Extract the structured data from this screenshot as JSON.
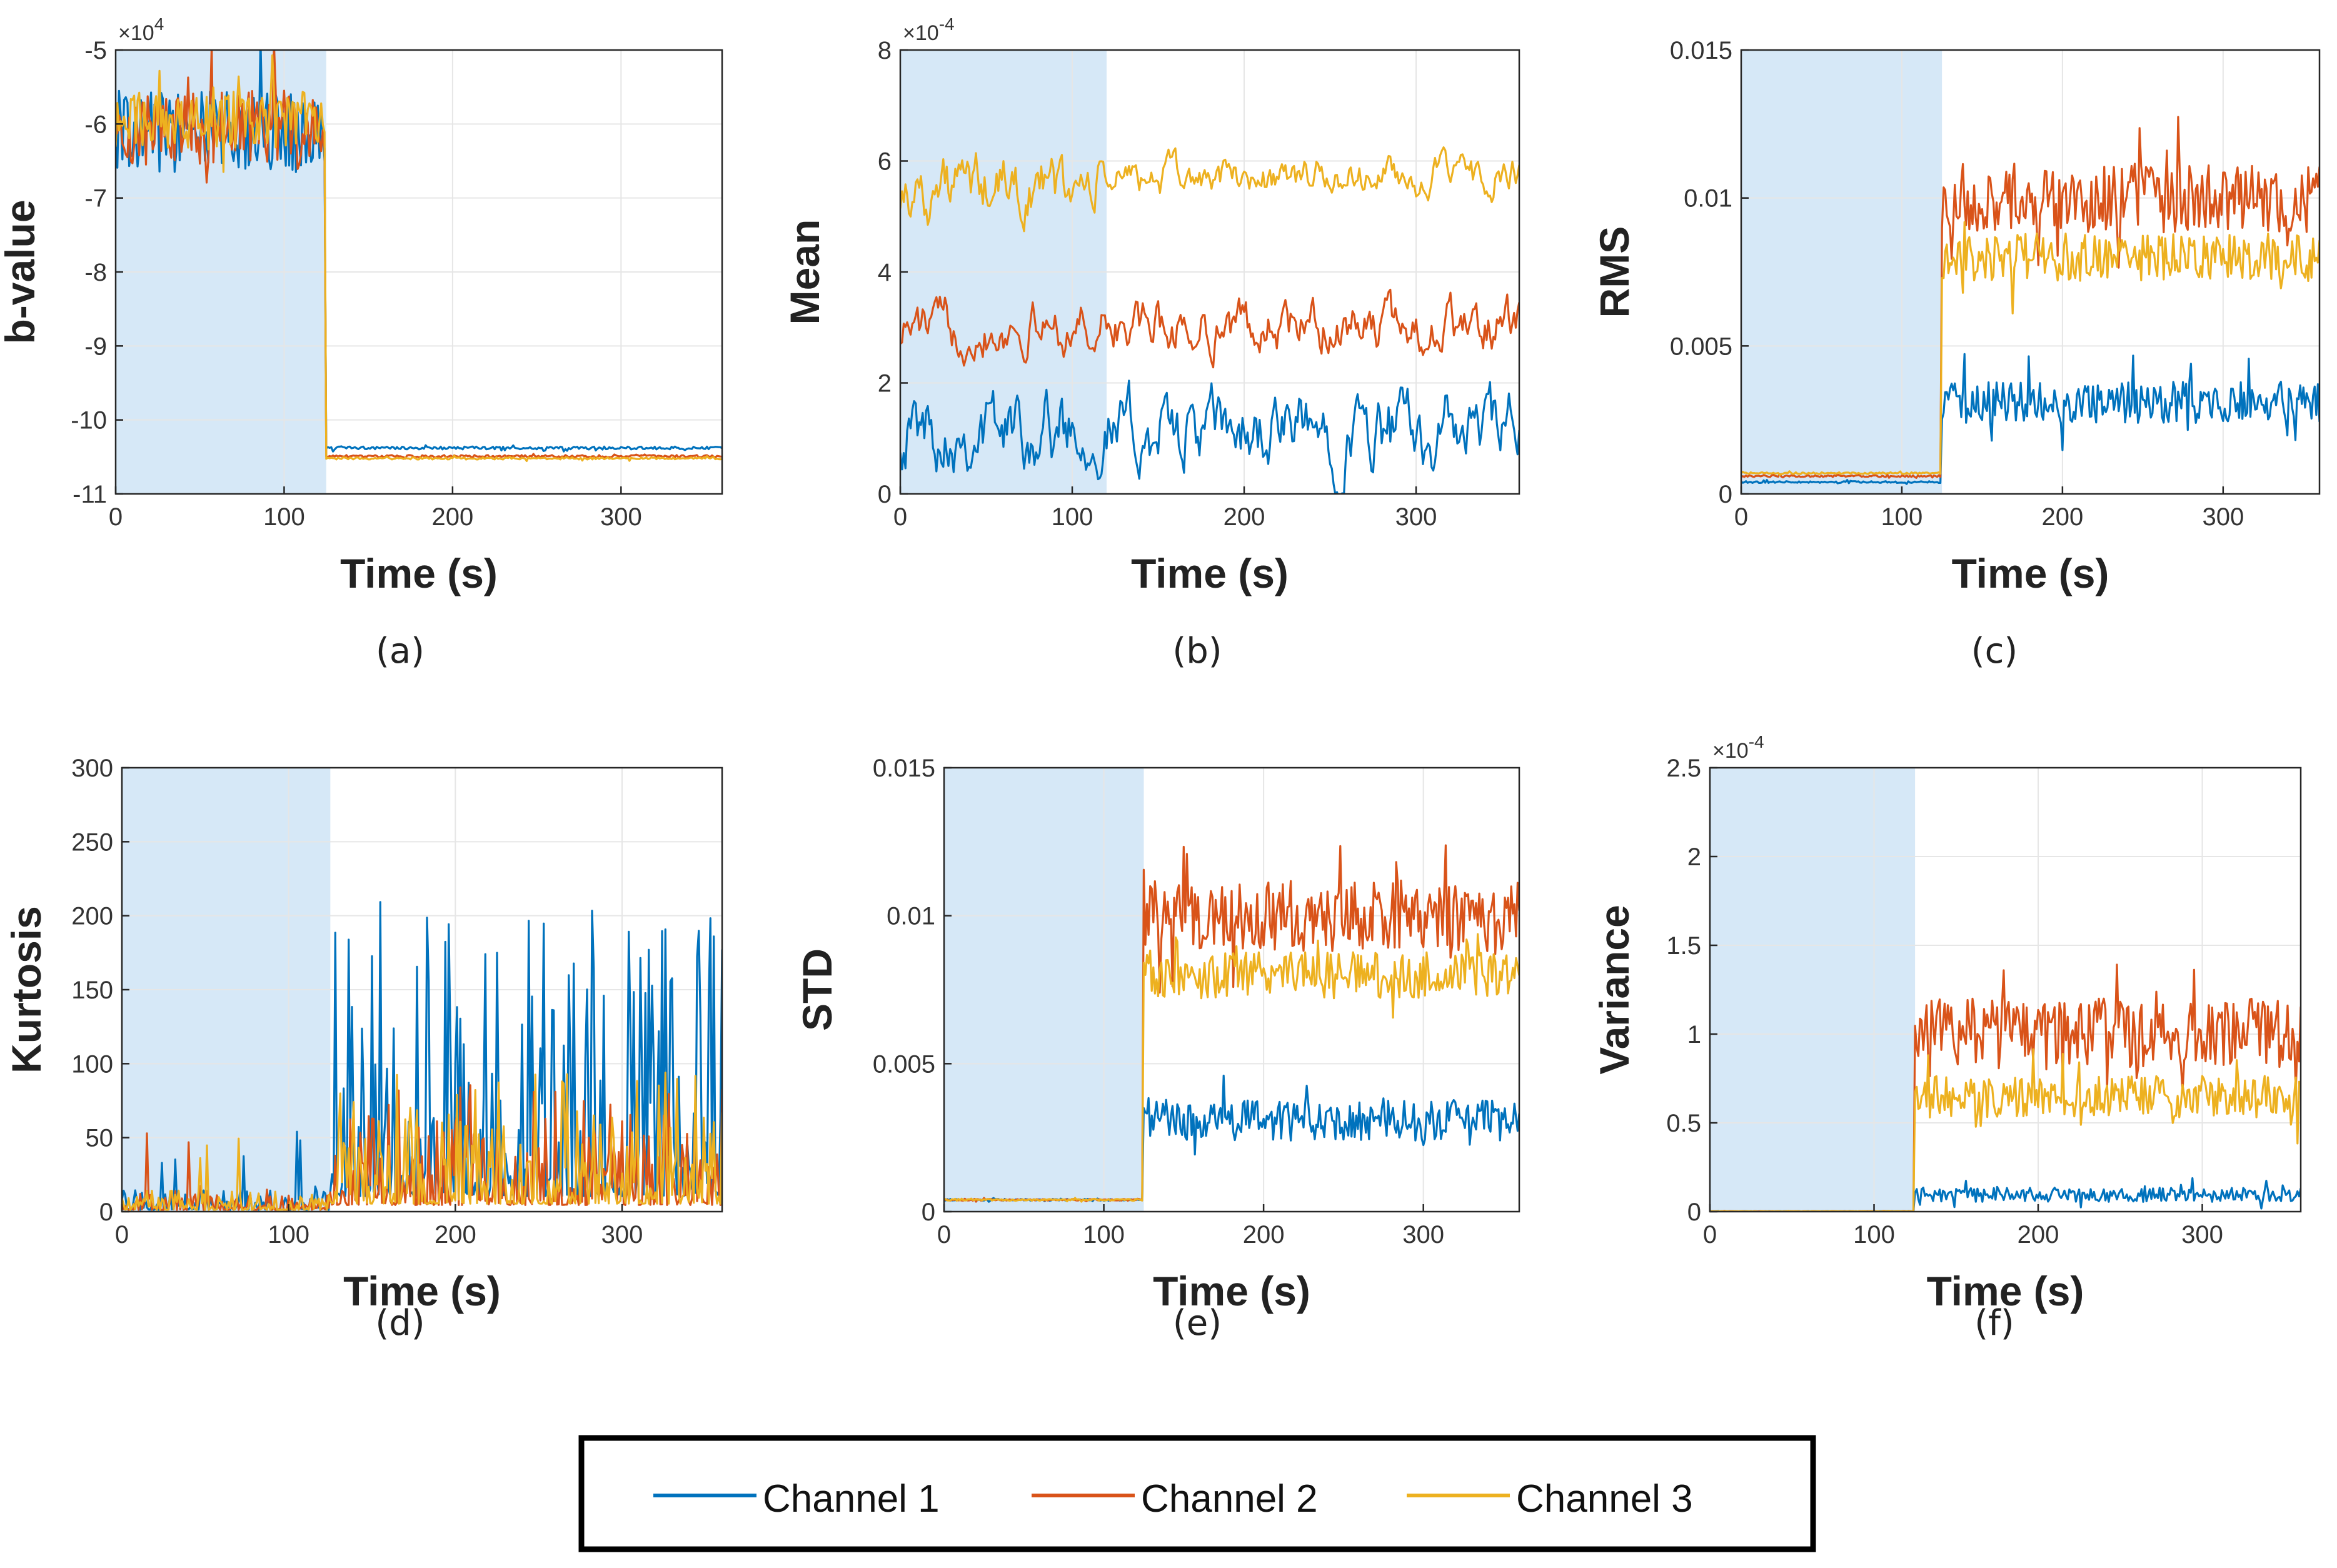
{
  "chart_data": [
    {
      "id": "a",
      "type": "line",
      "panel_label": "(a)",
      "title": "",
      "xlabel": "Time (s)",
      "ylabel": "b-value",
      "exponent_label": "×10^4",
      "xlim": [
        0,
        360
      ],
      "ylim": [
        -110000,
        -50000
      ],
      "xticks": [
        0,
        100,
        200,
        300
      ],
      "yticks": [
        -110000,
        -100000,
        -90000,
        -80000,
        -70000,
        -60000,
        -50000
      ],
      "ytick_labels": [
        "-11",
        "-10",
        "-9",
        "-8",
        "-7",
        "-6",
        "-5"
      ],
      "shaded_region": [
        0,
        125
      ],
      "grid": true,
      "series": [
        {
          "name": "Channel 1",
          "before": -61000,
          "before_noise": 5500,
          "after": -103800,
          "after_noise": 200
        },
        {
          "name": "Channel 2",
          "before": -60500,
          "before_noise": 5000,
          "after": -104900,
          "after_noise": 150
        },
        {
          "name": "Channel 3",
          "before": -59500,
          "before_noise": 4000,
          "after": -105200,
          "after_noise": 150
        }
      ]
    },
    {
      "id": "b",
      "type": "line",
      "panel_label": "(b)",
      "title": "",
      "xlabel": "Time (s)",
      "ylabel": "Mean",
      "exponent_label": "×10^-4",
      "xlim": [
        0,
        360
      ],
      "ylim": [
        0,
        0.0008
      ],
      "xticks": [
        0,
        100,
        200,
        300
      ],
      "yticks": [
        0,
        0.0002,
        0.0004,
        0.0006,
        0.0008
      ],
      "ytick_labels": [
        "0",
        "2",
        "4",
        "6",
        "8"
      ],
      "shaded_region": [
        0,
        120
      ],
      "grid": true,
      "series": [
        {
          "name": "Channel 1",
          "before": 0.00012,
          "before_noise": 6e-05,
          "after": 0.00011,
          "after_noise": 6e-05
        },
        {
          "name": "Channel 2",
          "before": 0.0003,
          "before_noise": 4e-05,
          "after": 0.0003,
          "after_noise": 4e-05
        },
        {
          "name": "Channel 3",
          "before": 0.00055,
          "before_noise": 5e-05,
          "after": 0.00057,
          "after_noise": 3e-05
        }
      ]
    },
    {
      "id": "c",
      "type": "line",
      "panel_label": "(c)",
      "title": "",
      "xlabel": "Time (s)",
      "ylabel": "RMS",
      "exponent_label": "",
      "xlim": [
        0,
        360
      ],
      "ylim": [
        0,
        0.015
      ],
      "xticks": [
        0,
        100,
        200,
        300
      ],
      "yticks": [
        0,
        0.005,
        0.01,
        0.015
      ],
      "ytick_labels": [
        "0",
        "0.005",
        "0.01",
        "0.015"
      ],
      "shaded_region": [
        0,
        125
      ],
      "grid": true,
      "series": [
        {
          "name": "Channel 1",
          "before": 0.0004,
          "before_noise": 3e-05,
          "after": 0.0031,
          "after_noise": 0.0007
        },
        {
          "name": "Channel 2",
          "before": 0.0006,
          "before_noise": 3e-05,
          "after": 0.01,
          "after_noise": 0.0012
        },
        {
          "name": "Channel 3",
          "before": 0.0007,
          "before_noise": 3e-05,
          "after": 0.008,
          "after_noise": 0.0008
        }
      ]
    },
    {
      "id": "d",
      "type": "line",
      "panel_label": "(d)",
      "title": "",
      "xlabel": "Time (s)",
      "ylabel": "Kurtosis",
      "exponent_label": "",
      "xlim": [
        0,
        360
      ],
      "ylim": [
        0,
        300
      ],
      "xticks": [
        0,
        100,
        200,
        300
      ],
      "yticks": [
        0,
        50,
        100,
        150,
        200,
        250,
        300
      ],
      "ytick_labels": [
        "0",
        "50",
        "100",
        "150",
        "200",
        "250",
        "300"
      ],
      "shaded_region": [
        0,
        125
      ],
      "grid": true,
      "series": [
        {
          "name": "Channel 1",
          "before": 4,
          "before_noise": 3,
          "after": 35,
          "after_noise": 45
        },
        {
          "name": "Channel 2",
          "before": 4,
          "before_noise": 3,
          "after": 15,
          "after_noise": 18
        },
        {
          "name": "Channel 3",
          "before": 4,
          "before_noise": 3,
          "after": 18,
          "after_noise": 20
        }
      ]
    },
    {
      "id": "e",
      "type": "line",
      "panel_label": "(e)",
      "title": "",
      "xlabel": "Time (s)",
      "ylabel": "STD",
      "exponent_label": "",
      "xlim": [
        0,
        360
      ],
      "ylim": [
        0,
        0.015
      ],
      "xticks": [
        0,
        100,
        200,
        300
      ],
      "yticks": [
        0,
        0.005,
        0.01,
        0.015
      ],
      "ytick_labels": [
        "0",
        "0.005",
        "0.01",
        "0.015"
      ],
      "shaded_region": [
        0,
        125
      ],
      "grid": true,
      "series": [
        {
          "name": "Channel 1",
          "before": 0.0004,
          "before_noise": 3e-05,
          "after": 0.0031,
          "after_noise": 0.0007
        },
        {
          "name": "Channel 2",
          "before": 0.0004,
          "before_noise": 3e-05,
          "after": 0.01,
          "after_noise": 0.0012
        },
        {
          "name": "Channel 3",
          "before": 0.0004,
          "before_noise": 3e-05,
          "after": 0.008,
          "after_noise": 0.0008
        }
      ]
    },
    {
      "id": "f",
      "type": "line",
      "panel_label": "(f)",
      "title": "",
      "xlabel": "Time (s)",
      "ylabel": "Variance",
      "exponent_label": "×10^-4",
      "xlim": [
        0,
        360
      ],
      "ylim": [
        0,
        0.00025
      ],
      "xticks": [
        0,
        100,
        200,
        300
      ],
      "yticks": [
        0,
        5e-05,
        0.0001,
        0.00015,
        0.0002,
        0.00025
      ],
      "ytick_labels": [
        "0",
        "0.5",
        "1",
        "1.5",
        "2",
        "2.5"
      ],
      "shaded_region": [
        0,
        125
      ],
      "grid": true,
      "series": [
        {
          "name": "Channel 1",
          "before": 2e-07,
          "before_noise": 1e-07,
          "after": 9.5e-06,
          "after_noise": 4e-06
        },
        {
          "name": "Channel 2",
          "before": 2e-07,
          "before_noise": 1e-07,
          "after": 0.0001,
          "after_noise": 2e-05
        },
        {
          "name": "Channel 3",
          "before": 2e-07,
          "before_noise": 1e-07,
          "after": 6.5e-05,
          "after_noise": 1.2e-05
        }
      ]
    }
  ],
  "legend": {
    "placement": "bottom-center",
    "entries": [
      {
        "name": "Channel 1",
        "color": "#0072BD"
      },
      {
        "name": "Channel 2",
        "color": "#D95319"
      },
      {
        "name": "Channel 3",
        "color": "#EDB120"
      }
    ]
  },
  "colors": {
    "shade": "#d6e8f7",
    "grid": "#e6e6e6",
    "axis": "#262626"
  }
}
